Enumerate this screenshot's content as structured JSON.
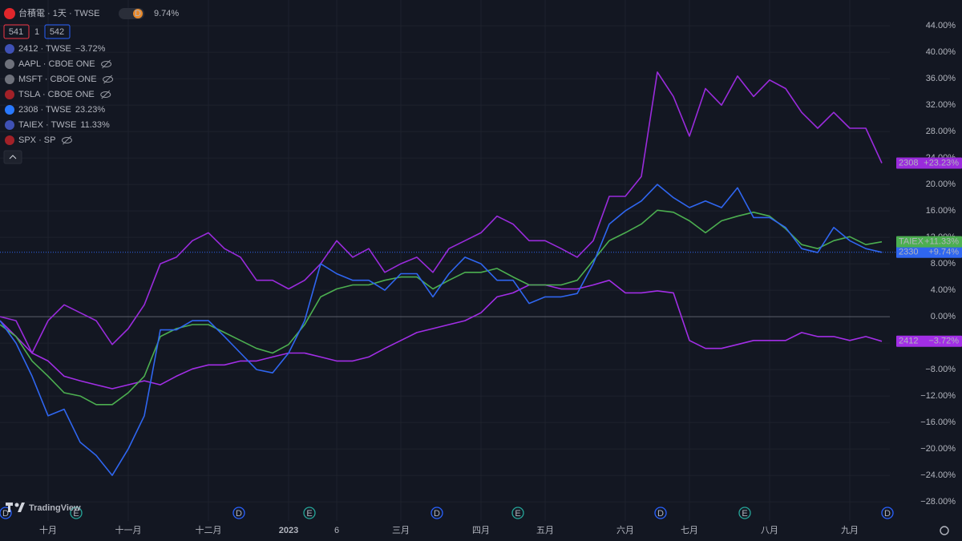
{
  "chart_data": {
    "type": "line",
    "categories": [
      null,
      null,
      null,
      "十月",
      null,
      null,
      null,
      null,
      "十一月",
      null,
      null,
      null,
      null,
      "十二月",
      null,
      null,
      null,
      null,
      "2023",
      null,
      null,
      "6",
      null,
      null,
      null,
      "三月",
      null,
      null,
      null,
      null,
      "四月",
      null,
      null,
      null,
      "五月",
      null,
      null,
      null,
      null,
      "六月",
      null,
      null,
      null,
      "七月",
      null,
      null,
      null,
      null,
      "八月",
      null,
      null,
      null,
      null,
      "九月",
      null,
      null
    ],
    "ylim": [
      -30.9,
      47.9
    ],
    "yticks": [
      {
        "value": -28,
        "label": "−28.00%"
      },
      {
        "value": -24,
        "label": "−24.00%"
      },
      {
        "value": -20,
        "label": "−20.00%"
      },
      {
        "value": -16,
        "label": "−16.00%"
      },
      {
        "value": -12,
        "label": "−12.00%"
      },
      {
        "value": -8,
        "label": "−8.00%"
      },
      {
        "value": -4,
        "label": "−4.00%"
      },
      {
        "value": 0,
        "label": "0.00%"
      },
      {
        "value": 4,
        "label": "4.00%"
      },
      {
        "value": 8,
        "label": "8.00%"
      },
      {
        "value": 12,
        "label": "12.00%"
      },
      {
        "value": 16,
        "label": "16.00%"
      },
      {
        "value": 20,
        "label": "20.00%"
      },
      {
        "value": 24,
        "label": "24.00%"
      },
      {
        "value": 28,
        "label": "28.00%"
      },
      {
        "value": 32,
        "label": "32.00%"
      },
      {
        "value": 36,
        "label": "36.00%"
      },
      {
        "value": 40,
        "label": "40.00%"
      },
      {
        "value": 44,
        "label": "44.00%"
      }
    ],
    "grid": true,
    "series": [
      {
        "name": "台積電 · 1天 · TWSE",
        "tag": "2330",
        "legend_value": "9.74%",
        "end_label": "+9.74%",
        "color": "#2f66f0",
        "values": [
          -0.6,
          -4,
          -9,
          -15,
          -14,
          -19,
          -21,
          -24,
          -20,
          -15,
          -2,
          -2,
          -0.6,
          -0.6,
          -3,
          -5.5,
          -8,
          -8.5,
          -5.5,
          -0.6,
          8,
          6.5,
          5.5,
          5.5,
          4,
          6.5,
          6.5,
          3,
          6.5,
          9,
          8,
          5.5,
          5.5,
          2,
          3,
          3,
          3.5,
          8,
          14,
          16,
          17.5,
          20,
          18,
          16.5,
          17.5,
          16.5,
          19.5,
          15,
          15,
          13.5,
          10.3,
          9.7,
          13.5,
          11.5,
          10.3,
          9.74
        ]
      },
      {
        "name": "2412 · TWSE",
        "tag": "2412",
        "legend_value": "−3.72%",
        "end_label": "−3.72%",
        "color": "#a22ee6",
        "values": [
          -0.6,
          -3,
          -5.5,
          -6.7,
          -9,
          -9.7,
          -10.3,
          -10.9,
          -10.3,
          -9.7,
          -10.3,
          -9,
          -7.9,
          -7.3,
          -7.3,
          -6.7,
          -6.7,
          -6.1,
          -5.5,
          -5.5,
          -6.1,
          -6.7,
          -6.7,
          -6.1,
          -4.8,
          -3.6,
          -2.4,
          -1.8,
          -1.2,
          -0.6,
          0.6,
          3,
          3.6,
          4.8,
          4.8,
          4.2,
          4.2,
          4.8,
          5.5,
          3.6,
          3.6,
          3.9,
          3.6,
          -3.6,
          -4.8,
          -4.8,
          -4.2,
          -3.6,
          -3.6,
          -3.6,
          -2.4,
          -3,
          -3,
          -3.6,
          -3,
          -3.72
        ]
      },
      {
        "name": "2308 · TWSE",
        "tag": "2308",
        "legend_value": "23.23%",
        "end_label": "+23.23%",
        "color": "#9a2bdc",
        "values": [
          0,
          -0.6,
          -5.5,
          -0.6,
          1.8,
          0.6,
          -0.6,
          -4.2,
          -1.8,
          1.8,
          8,
          9,
          11.5,
          12.7,
          10.3,
          9,
          5.5,
          5.5,
          4.2,
          5.5,
          8,
          11.5,
          9,
          10.3,
          6.7,
          8,
          9,
          6.7,
          10.3,
          11.5,
          12.7,
          15.2,
          14,
          11.5,
          11.5,
          10.3,
          9,
          11.5,
          18.2,
          18.2,
          21.2,
          37,
          33.3,
          27.3,
          34.5,
          32,
          36.4,
          33.3,
          35.8,
          34.5,
          30.9,
          28.5,
          30.9,
          28.5,
          28.5,
          23.23
        ]
      },
      {
        "name": "TAIEX · TWSE",
        "tag": "TAIEX",
        "legend_value": "11.33%",
        "end_label": "+11.33%",
        "color": "#4caf50",
        "values": [
          -1.2,
          -3,
          -6.7,
          -9,
          -11.5,
          -12,
          -13.3,
          -13.3,
          -11.5,
          -9,
          -3,
          -1.8,
          -1.2,
          -1.2,
          -2.4,
          -3.6,
          -4.8,
          -5.5,
          -4.2,
          -1.2,
          3,
          4.2,
          4.8,
          4.8,
          5.5,
          6,
          6,
          4.2,
          5.5,
          6.7,
          6.7,
          7.3,
          6,
          4.8,
          4.8,
          4.8,
          5.5,
          8.5,
          11.5,
          12.7,
          14,
          16.1,
          15.8,
          14.5,
          12.7,
          14.5,
          15.2,
          15.8,
          15.2,
          13.3,
          10.9,
          10.3,
          11.5,
          12.1,
          10.9,
          11.33
        ]
      }
    ]
  },
  "toolbar": {
    "interval_badge": "D",
    "left_box": "541",
    "multiplier": "1",
    "right_box": "542"
  },
  "hidden_symbols": [
    "AAPL · CBOE ONE",
    "MSFT · CBOE ONE",
    "TSLA · CBOE ONE",
    "SPX · SP"
  ],
  "events": [
    "D",
    "E",
    "D",
    "E",
    "D",
    "E",
    "D",
    "E",
    "D"
  ],
  "brand": "TradingView"
}
